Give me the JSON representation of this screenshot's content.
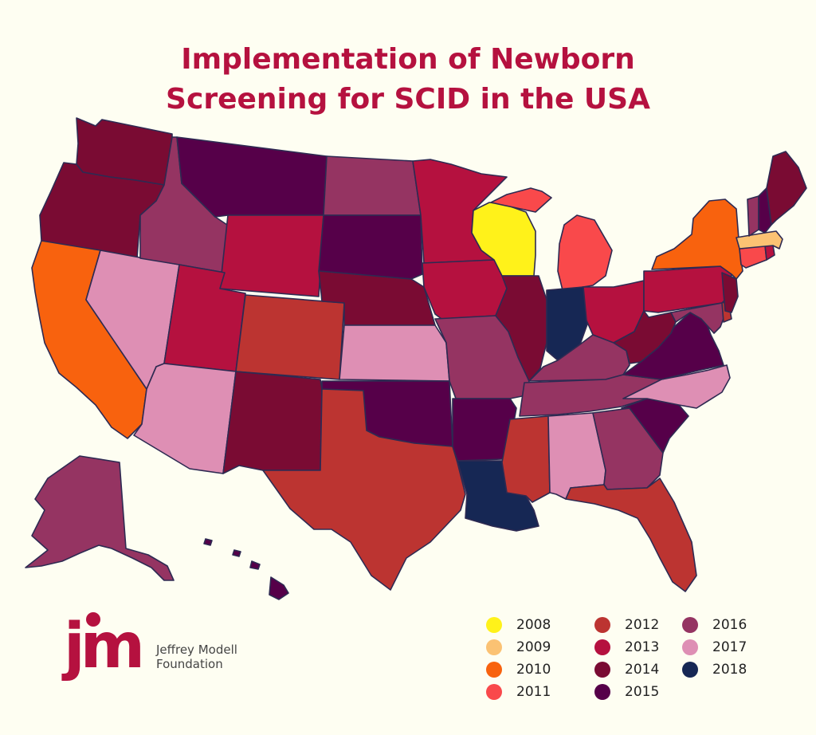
{
  "title": {
    "line1": "Implementation of Newborn",
    "line2": "Screening for SCID in the USA"
  },
  "logo": {
    "mark": "jm",
    "name_line1": "Jeffrey Modell",
    "name_line2": "Foundation"
  },
  "colors": {
    "background": "#fefef2",
    "title": "#b5113f",
    "border": "#2e2a52"
  },
  "legend": [
    {
      "year": "2008",
      "color": "#fff21a"
    },
    {
      "year": "2009",
      "color": "#fbc273"
    },
    {
      "year": "2010",
      "color": "#f8620e"
    },
    {
      "year": "2011",
      "color": "#f9494b"
    },
    {
      "year": "2012",
      "color": "#bc3431"
    },
    {
      "year": "2013",
      "color": "#b5113f"
    },
    {
      "year": "2014",
      "color": "#7a0b33"
    },
    {
      "year": "2015",
      "color": "#560049"
    },
    {
      "year": "2016",
      "color": "#953462"
    },
    {
      "year": "2017",
      "color": "#de8fb4"
    },
    {
      "year": "2018",
      "color": "#162754"
    }
  ],
  "states": [
    {
      "id": "WA",
      "year": "2014"
    },
    {
      "id": "OR",
      "year": "2014"
    },
    {
      "id": "CA",
      "year": "2010"
    },
    {
      "id": "NV",
      "year": "2017"
    },
    {
      "id": "ID",
      "year": "2016"
    },
    {
      "id": "MT",
      "year": "2015"
    },
    {
      "id": "WY",
      "year": "2013"
    },
    {
      "id": "UT",
      "year": "2013"
    },
    {
      "id": "AZ",
      "year": "2017"
    },
    {
      "id": "CO",
      "year": "2012"
    },
    {
      "id": "NM",
      "year": "2014"
    },
    {
      "id": "ND",
      "year": "2016"
    },
    {
      "id": "SD",
      "year": "2015"
    },
    {
      "id": "NE",
      "year": "2014"
    },
    {
      "id": "KS",
      "year": "2017"
    },
    {
      "id": "OK",
      "year": "2015"
    },
    {
      "id": "TX",
      "year": "2012"
    },
    {
      "id": "MN",
      "year": "2013"
    },
    {
      "id": "IA",
      "year": "2013"
    },
    {
      "id": "MO",
      "year": "2016"
    },
    {
      "id": "AR",
      "year": "2015"
    },
    {
      "id": "LA",
      "year": "2018"
    },
    {
      "id": "WI",
      "year": "2008"
    },
    {
      "id": "IL",
      "year": "2014"
    },
    {
      "id": "MI",
      "year": "2011"
    },
    {
      "id": "IN",
      "year": "2018"
    },
    {
      "id": "OH",
      "year": "2013"
    },
    {
      "id": "KY",
      "year": "2016"
    },
    {
      "id": "TN",
      "year": "2016"
    },
    {
      "id": "MS",
      "year": "2012"
    },
    {
      "id": "AL",
      "year": "2017"
    },
    {
      "id": "GA",
      "year": "2016"
    },
    {
      "id": "FL",
      "year": "2012"
    },
    {
      "id": "SC",
      "year": "2015"
    },
    {
      "id": "NC",
      "year": "2017"
    },
    {
      "id": "VA",
      "year": "2015"
    },
    {
      "id": "WV",
      "year": "2014"
    },
    {
      "id": "PA",
      "year": "2013"
    },
    {
      "id": "NY",
      "year": "2010"
    },
    {
      "id": "MD",
      "year": "2016"
    },
    {
      "id": "DE",
      "year": "2012"
    },
    {
      "id": "NJ",
      "year": "2014"
    },
    {
      "id": "CT",
      "year": "2011"
    },
    {
      "id": "RI",
      "year": "2013"
    },
    {
      "id": "MA",
      "year": "2009"
    },
    {
      "id": "VT",
      "year": "2016"
    },
    {
      "id": "NH",
      "year": "2015"
    },
    {
      "id": "ME",
      "year": "2014"
    },
    {
      "id": "AK",
      "year": "2016"
    },
    {
      "id": "HI",
      "year": "2015"
    }
  ]
}
